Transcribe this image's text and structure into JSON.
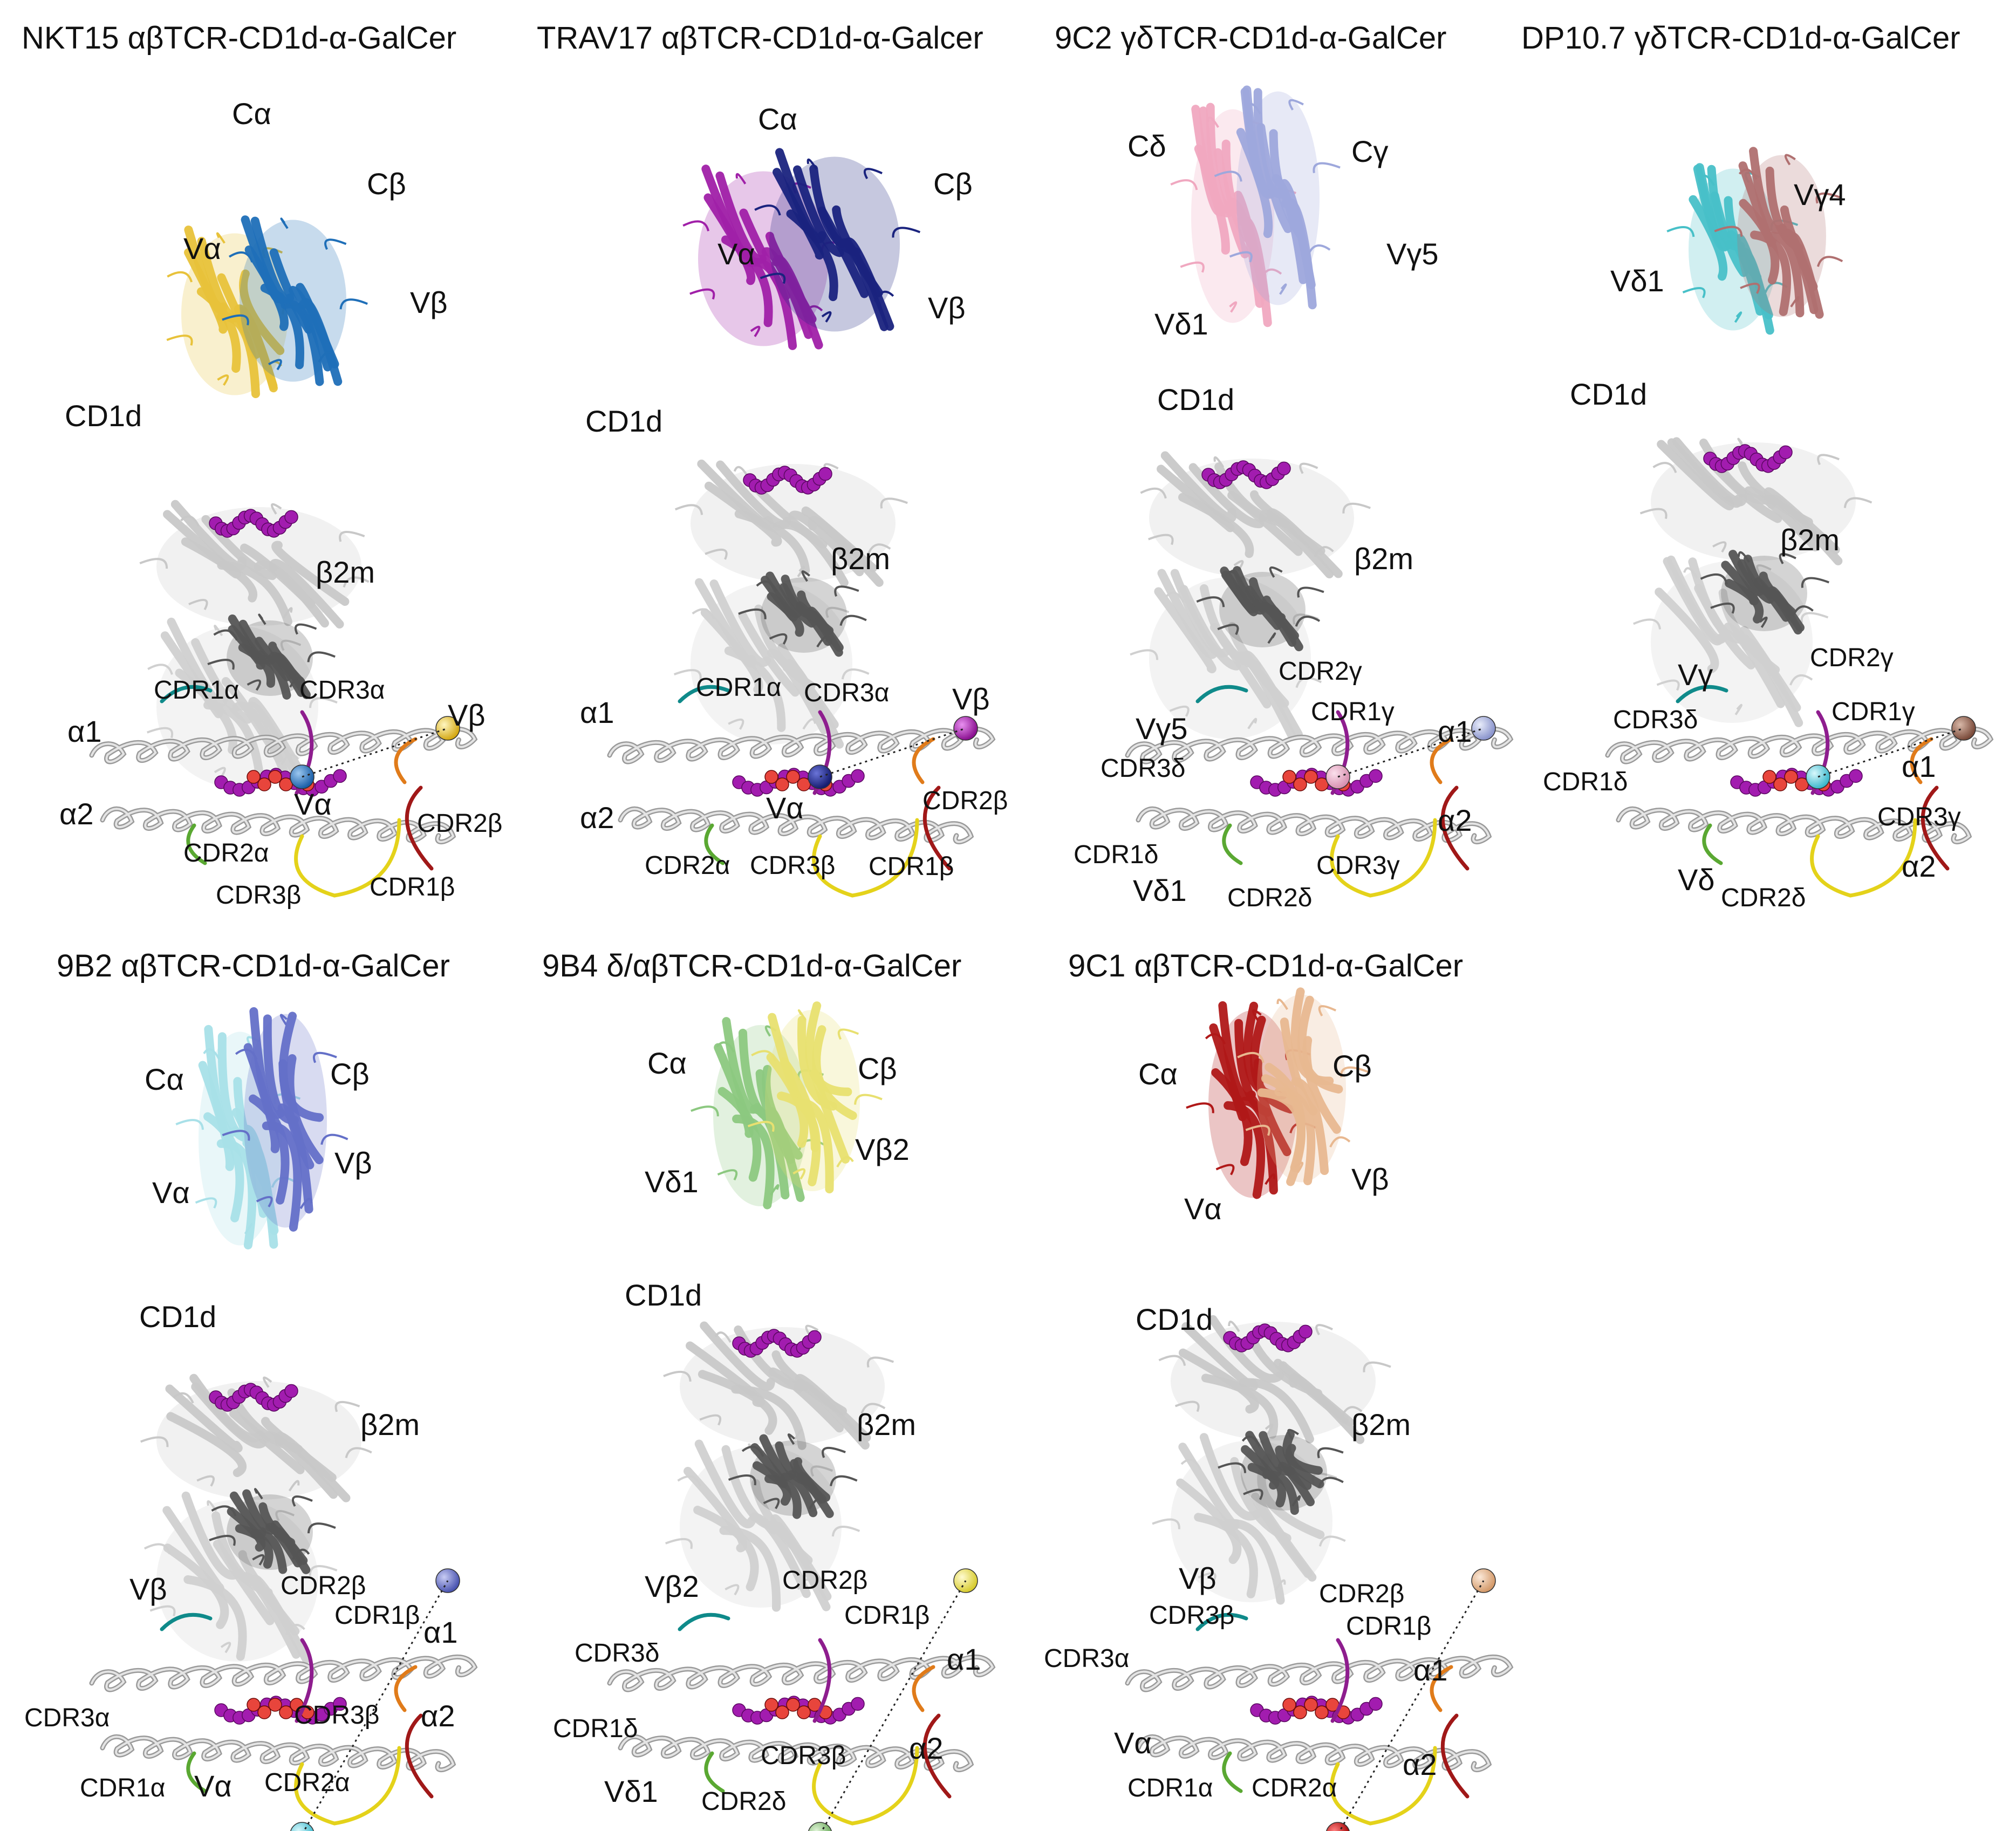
{
  "colors": {
    "cd1d": "#c8c8c8",
    "b2m": "#555555",
    "ligand": "#a21caf",
    "ligand_core": "#e8453c",
    "cdr1_alpha": "#0f8a8a",
    "cdr2_alpha": "#5aa832",
    "cdr3_alpha": "#8e1d8e",
    "cdr1_beta": "#a01818",
    "cdr2_beta": "#e07b1a",
    "cdr3_beta": "#e4d21a"
  },
  "panels": [
    {
      "id": "nkt15",
      "title": "NKT15 αβTCR-CD1d-α-GalCer",
      "chain_colors": [
        "#e8c23a",
        "#1f6fb8"
      ],
      "labels": [
        "Cα",
        "Cβ",
        "Vα",
        "Vβ",
        "CD1d",
        "β2m"
      ],
      "footprint_labels": [
        "CDR1α",
        "CDR3α",
        "Vβ",
        "α1",
        "α2",
        "Vα",
        "CDR2β",
        "CDR2α",
        "CDR3β",
        "CDR1β"
      ],
      "sphere_colors": [
        "#e8c23a",
        "#1f6fb8"
      ]
    },
    {
      "id": "trav17",
      "title": "TRAV17 αβTCR-CD1d-α-Galcer",
      "chain_colors": [
        "#a020a8",
        "#1a237e"
      ],
      "labels": [
        "Cα",
        "Cβ",
        "Vα",
        "Vβ",
        "CD1d",
        "β2m"
      ],
      "footprint_labels": [
        "CDR1α",
        "CDR3α",
        "Vβ",
        "α1",
        "α2",
        "Vα",
        "CDR2β",
        "CDR2α",
        "CDR3β",
        "CDR1β"
      ],
      "sphere_colors": [
        "#a020a8",
        "#1a237e"
      ]
    },
    {
      "id": "9c2",
      "title": "9C2 γδTCR-CD1d-α-GalCer",
      "chain_colors": [
        "#f0a8c0",
        "#9ea8dc"
      ],
      "labels": [
        "Cδ",
        "Cγ",
        "Vγ5",
        "Vδ1",
        "CD1d",
        "β2m"
      ],
      "footprint_labels": [
        "CDR2γ",
        "CDR1γ",
        "Vγ5",
        "α1",
        "CDR3δ",
        "α2",
        "CDR1δ",
        "CDR3γ",
        "Vδ1",
        "CDR2δ"
      ],
      "sphere_colors": [
        "#9ea8dc",
        "#e8a8c8"
      ]
    },
    {
      "id": "dp107",
      "title": "DP10.7 γδTCR-CD1d-α-GalCer",
      "chain_colors": [
        "#48c0c8",
        "#b07070"
      ],
      "labels": [
        "Vγ4",
        "Vδ1",
        "CD1d",
        "β2m"
      ],
      "footprint_labels": [
        "CDR2γ",
        "Vγ",
        "CDR1γ",
        "CDR3δ",
        "α1",
        "CDR1δ",
        "CDR3γ",
        "α2",
        "Vδ",
        "CDR2δ"
      ],
      "sphere_colors": [
        "#a07060",
        "#48c0d0"
      ]
    },
    {
      "id": "9b2",
      "title": "9B2 αβTCR-CD1d-α-GalCer",
      "chain_colors": [
        "#a8e0e8",
        "#6470c8"
      ],
      "labels": [
        "Cα",
        "Cβ",
        "Vβ",
        "Vα",
        "CD1d",
        "β2m"
      ],
      "footprint_labels": [
        "Vβ",
        "CDR2β",
        "CDR1β",
        "α1",
        "CDR3α",
        "CDR3β",
        "α2",
        "CDR1α",
        "Vα",
        "CDR2α"
      ],
      "sphere_colors": [
        "#6470c8",
        "#5cd0e0"
      ]
    },
    {
      "id": "9b4",
      "title": "9B4 δ/αβTCR-CD1d-α-GalCer",
      "chain_colors": [
        "#8cc880",
        "#e8e070"
      ],
      "labels": [
        "Cα",
        "Cβ",
        "Vδ1",
        "Vβ2",
        "CD1d",
        "β2m"
      ],
      "footprint_labels": [
        "Vβ2",
        "CDR2β",
        "CDR1β",
        "CDR3δ",
        "α1",
        "CDR1δ",
        "CDR3β",
        "α2",
        "Vδ1",
        "CDR2δ"
      ],
      "sphere_colors": [
        "#e8e060",
        "#8cc880"
      ]
    },
    {
      "id": "9c1",
      "title": "9C1 αβTCR-CD1d-α-GalCer",
      "chain_colors": [
        "#b01818",
        "#e8b890"
      ],
      "labels": [
        "Cα",
        "Cβ",
        "Vβ",
        "Vα",
        "CD1d",
        "β2m"
      ],
      "footprint_labels": [
        "Vβ",
        "CDR2β",
        "CDR3β",
        "CDR1β",
        "CDR3α",
        "α1",
        "Vα",
        "α2",
        "CDR1α",
        "CDR2α"
      ],
      "sphere_colors": [
        "#e8b890",
        "#c01010"
      ]
    }
  ]
}
